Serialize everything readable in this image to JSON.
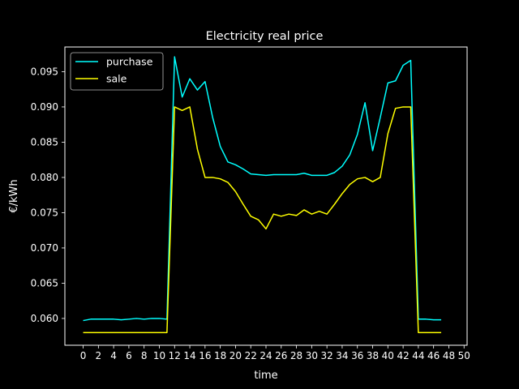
{
  "chart_data": {
    "type": "line",
    "title": "Electricity real price",
    "xlabel": "time",
    "ylabel": "€/kWh",
    "xlim": [
      -2.4,
      50.4
    ],
    "ylim": [
      0.0562,
      0.0985
    ],
    "x_ticks": [
      0,
      2,
      4,
      6,
      8,
      10,
      12,
      14,
      16,
      18,
      20,
      22,
      24,
      26,
      28,
      30,
      32,
      34,
      36,
      38,
      40,
      42,
      44,
      46,
      48,
      50
    ],
    "y_ticks": [
      0.06,
      0.065,
      0.07,
      0.075,
      0.08,
      0.085,
      0.09,
      0.095
    ],
    "y_tick_decimals": 3,
    "grid": false,
    "legend_position": "upper-left",
    "x": [
      0,
      1,
      2,
      3,
      4,
      5,
      6,
      7,
      8,
      9,
      10,
      11,
      12,
      13,
      14,
      15,
      16,
      17,
      18,
      19,
      20,
      21,
      22,
      23,
      24,
      25,
      26,
      27,
      28,
      29,
      30,
      31,
      32,
      33,
      34,
      35,
      36,
      37,
      38,
      39,
      40,
      41,
      42,
      43,
      44,
      45,
      46,
      47
    ],
    "series": [
      {
        "name": "purchase",
        "color": "#00ffff",
        "values": [
          0.0597,
          0.0599,
          0.0599,
          0.0599,
          0.0599,
          0.0598,
          0.0599,
          0.06,
          0.0599,
          0.06,
          0.06,
          0.0599,
          0.0971,
          0.0914,
          0.094,
          0.0924,
          0.0936,
          0.0885,
          0.0844,
          0.0822,
          0.0818,
          0.0812,
          0.0805,
          0.0804,
          0.0803,
          0.0804,
          0.0804,
          0.0804,
          0.0804,
          0.0806,
          0.0803,
          0.0803,
          0.0803,
          0.0807,
          0.0816,
          0.0832,
          0.0861,
          0.0906,
          0.0838,
          0.0885,
          0.0934,
          0.0937,
          0.0959,
          0.0966,
          0.0599,
          0.0599,
          0.0598,
          0.0598
        ]
      },
      {
        "name": "sale",
        "color": "#ffff00",
        "values": [
          0.058,
          0.058,
          0.058,
          0.058,
          0.058,
          0.058,
          0.058,
          0.058,
          0.058,
          0.058,
          0.058,
          0.058,
          0.09,
          0.0895,
          0.09,
          0.084,
          0.08,
          0.08,
          0.0798,
          0.0793,
          0.078,
          0.0762,
          0.0745,
          0.074,
          0.0727,
          0.0748,
          0.0745,
          0.0748,
          0.0746,
          0.0754,
          0.0748,
          0.0752,
          0.0748,
          0.0762,
          0.0777,
          0.079,
          0.0798,
          0.08,
          0.0794,
          0.08,
          0.0862,
          0.0898,
          0.09,
          0.09,
          0.058,
          0.058,
          0.058,
          0.058
        ]
      }
    ]
  }
}
